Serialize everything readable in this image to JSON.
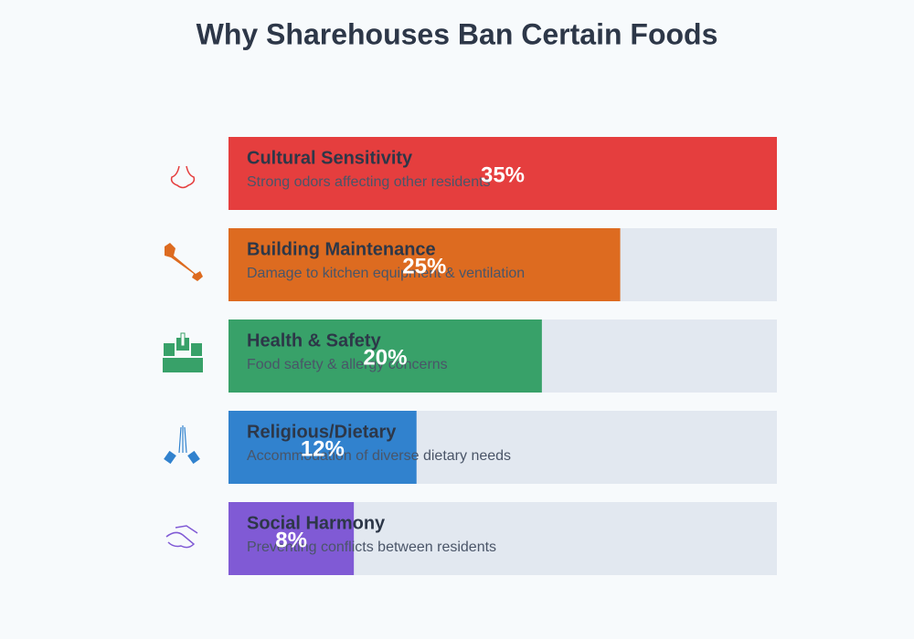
{
  "chart_data": {
    "type": "bar",
    "orientation": "horizontal",
    "title": "Why Sharehouses Ban Certain Foods",
    "categories": [
      "Cultural Sensitivity",
      "Building Maintenance",
      "Health & Safety",
      "Religious/Dietary",
      "Social Harmony"
    ],
    "descriptions": [
      "Strong odors affecting other residents",
      "Damage to kitchen equipment & ventilation",
      "Food safety & allergy concerns",
      "Accommodation of diverse dietary needs",
      "Preventing conflicts between residents"
    ],
    "values": [
      35,
      25,
      20,
      12,
      8
    ],
    "value_labels": [
      "35%",
      "25%",
      "20%",
      "12%",
      "8%"
    ],
    "colors": [
      "#e53e3e",
      "#dd6b20",
      "#38a169",
      "#3182ce",
      "#805ad5"
    ]
  }
}
